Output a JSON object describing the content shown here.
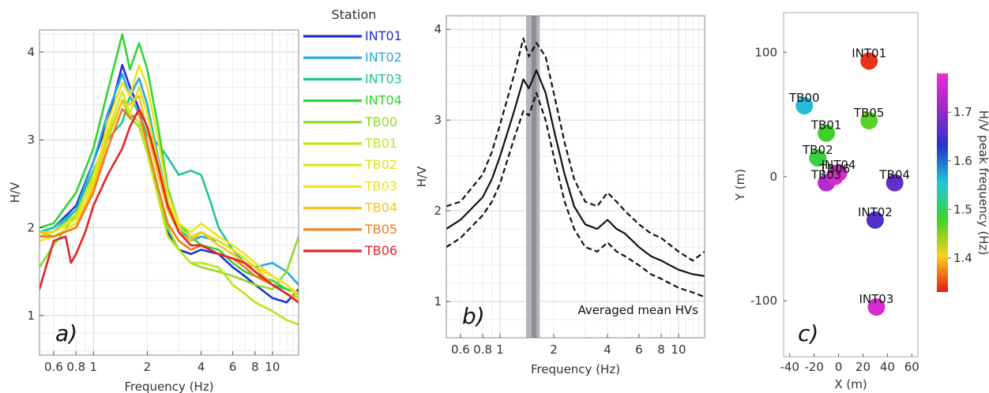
{
  "chart_data": [
    {
      "panel": "a)",
      "type": "line",
      "xlabel": "Frequency (Hz)",
      "ylabel": "H/V",
      "xscale": "log",
      "xlim": [
        0.5,
        14
      ],
      "ylim": [
        0.55,
        4.25
      ],
      "xticks": [
        0.6,
        0.8,
        1,
        2,
        4,
        6,
        8,
        10
      ],
      "xticklabels": [
        "0.6",
        "0.8",
        "1",
        "2",
        "4",
        "6",
        "8",
        "10"
      ],
      "yticks": [
        1,
        2,
        3,
        4
      ],
      "grid": true,
      "legend_title": "Station",
      "legend_position": "right",
      "series": [
        {
          "name": "INT01",
          "color": "#1f2fd8",
          "x": [
            0.5,
            0.6,
            0.8,
            1.0,
            1.2,
            1.45,
            1.6,
            1.8,
            2.0,
            2.3,
            2.6,
            3.0,
            3.5,
            4.0,
            5.0,
            6.0,
            7.0,
            8.0,
            10.0,
            12.0,
            14.0
          ],
          "y": [
            1.95,
            2.0,
            2.25,
            2.75,
            3.2,
            3.85,
            3.6,
            3.35,
            2.95,
            2.35,
            1.95,
            1.75,
            1.7,
            1.75,
            1.7,
            1.55,
            1.45,
            1.35,
            1.2,
            1.15,
            1.3
          ]
        },
        {
          "name": "INT02",
          "color": "#27a8e0",
          "x": [
            0.5,
            0.6,
            0.8,
            1.0,
            1.2,
            1.45,
            1.6,
            1.8,
            2.0,
            2.3,
            2.6,
            3.0,
            3.5,
            4.0,
            5.0,
            6.0,
            7.0,
            8.0,
            10.0,
            12.0,
            14.0
          ],
          "y": [
            1.9,
            1.95,
            2.2,
            2.75,
            3.3,
            3.75,
            3.5,
            3.7,
            3.4,
            2.8,
            2.3,
            2.0,
            1.85,
            1.9,
            1.85,
            1.75,
            1.6,
            1.55,
            1.6,
            1.5,
            1.35
          ]
        },
        {
          "name": "INT03",
          "color": "#1ec49a",
          "x": [
            0.5,
            0.6,
            0.8,
            1.0,
            1.2,
            1.45,
            1.6,
            1.8,
            2.0,
            2.3,
            2.6,
            3.0,
            3.5,
            4.0,
            4.5,
            5.0,
            6.0,
            7.0,
            8.0,
            10.0,
            12.0,
            14.0
          ],
          "y": [
            1.95,
            2.0,
            2.2,
            2.65,
            3.0,
            3.2,
            3.5,
            3.3,
            3.05,
            2.95,
            2.8,
            2.6,
            2.65,
            2.6,
            2.3,
            2.0,
            1.75,
            1.6,
            1.5,
            1.35,
            1.3,
            1.25
          ]
        },
        {
          "name": "INT04",
          "color": "#2fd62f",
          "x": [
            0.5,
            0.6,
            0.8,
            1.0,
            1.2,
            1.45,
            1.6,
            1.8,
            2.0,
            2.3,
            2.6,
            3.0,
            3.5,
            4.0,
            5.0,
            6.0,
            7.0,
            8.0,
            10.0,
            12.0,
            14.0
          ],
          "y": [
            2.0,
            2.05,
            2.4,
            2.9,
            3.55,
            4.2,
            3.8,
            4.1,
            3.8,
            3.15,
            2.45,
            2.05,
            1.9,
            1.8,
            1.75,
            1.6,
            1.5,
            1.45,
            1.4,
            1.3,
            1.25
          ]
        },
        {
          "name": "TB00",
          "color": "#8fdc22",
          "x": [
            0.5,
            0.6,
            0.8,
            1.0,
            1.2,
            1.45,
            1.6,
            1.8,
            2.0,
            2.3,
            2.6,
            3.0,
            3.5,
            4.0,
            5.0,
            6.0,
            7.0,
            8.0,
            10.0,
            12.0,
            14.0
          ],
          "y": [
            1.55,
            1.8,
            2.15,
            2.55,
            3.0,
            3.45,
            3.25,
            3.15,
            2.85,
            2.35,
            2.0,
            1.75,
            1.6,
            1.55,
            1.5,
            1.45,
            1.4,
            1.35,
            1.3,
            1.5,
            1.9
          ]
        },
        {
          "name": "TB01",
          "color": "#bde61c",
          "x": [
            0.5,
            0.6,
            0.8,
            1.0,
            1.2,
            1.45,
            1.6,
            1.8,
            2.0,
            2.3,
            2.6,
            3.0,
            3.5,
            4.0,
            5.0,
            6.0,
            7.0,
            8.0,
            10.0,
            12.0,
            14.0
          ],
          "y": [
            1.95,
            1.95,
            2.15,
            2.55,
            3.05,
            3.45,
            3.3,
            3.2,
            2.85,
            2.35,
            1.9,
            1.75,
            1.6,
            1.6,
            1.55,
            1.35,
            1.25,
            1.15,
            1.05,
            0.95,
            0.9
          ]
        },
        {
          "name": "TB02",
          "color": "#e0e51a",
          "x": [
            0.5,
            0.6,
            0.8,
            1.0,
            1.2,
            1.45,
            1.6,
            1.8,
            2.0,
            2.3,
            2.6,
            3.0,
            3.5,
            4.0,
            5.0,
            6.0,
            7.0,
            8.0,
            10.0,
            12.0,
            14.0
          ],
          "y": [
            1.9,
            1.95,
            2.1,
            2.6,
            3.1,
            3.55,
            3.3,
            3.6,
            3.3,
            2.75,
            2.3,
            2.0,
            1.9,
            1.95,
            1.85,
            1.75,
            1.65,
            1.55,
            1.45,
            1.35,
            1.2
          ]
        },
        {
          "name": "TB03",
          "color": "#f2e21c",
          "x": [
            0.5,
            0.6,
            0.8,
            1.0,
            1.2,
            1.45,
            1.6,
            1.8,
            2.0,
            2.3,
            2.6,
            3.0,
            3.5,
            4.0,
            5.0,
            6.0,
            7.0,
            8.0,
            10.0,
            12.0,
            14.0
          ],
          "y": [
            1.85,
            1.9,
            2.05,
            2.5,
            3.2,
            3.65,
            3.5,
            3.85,
            3.6,
            3.0,
            2.4,
            2.05,
            1.95,
            2.05,
            1.9,
            1.8,
            1.7,
            1.6,
            1.45,
            1.35,
            1.25
          ]
        },
        {
          "name": "TB04",
          "color": "#f7c31a",
          "x": [
            0.5,
            0.6,
            0.8,
            1.0,
            1.2,
            1.45,
            1.6,
            1.8,
            2.0,
            2.3,
            2.6,
            3.0,
            3.5,
            4.0,
            5.0,
            6.0,
            7.0,
            8.0,
            10.0,
            12.0,
            14.0
          ],
          "y": [
            1.95,
            1.9,
            2.0,
            2.45,
            3.0,
            3.45,
            3.4,
            3.5,
            3.1,
            2.6,
            2.2,
            1.95,
            1.85,
            1.95,
            1.8,
            1.7,
            1.6,
            1.55,
            1.35,
            1.25,
            1.2
          ]
        },
        {
          "name": "TB05",
          "color": "#f07c1e",
          "x": [
            0.5,
            0.6,
            0.8,
            1.0,
            1.2,
            1.45,
            1.6,
            1.8,
            2.0,
            2.3,
            2.6,
            3.0,
            3.5,
            4.0,
            5.0,
            6.0,
            7.0,
            8.0,
            10.0,
            12.0,
            14.0
          ],
          "y": [
            1.9,
            1.9,
            2.0,
            2.4,
            2.9,
            3.35,
            3.25,
            3.3,
            2.95,
            2.45,
            2.05,
            1.85,
            1.75,
            1.8,
            1.7,
            1.65,
            1.55,
            1.45,
            1.35,
            1.25,
            1.15
          ]
        },
        {
          "name": "TB06",
          "color": "#e6222a",
          "x": [
            0.5,
            0.6,
            0.7,
            0.75,
            0.8,
            0.9,
            1.0,
            1.2,
            1.45,
            1.6,
            1.8,
            2.0,
            2.3,
            2.6,
            3.0,
            3.5,
            4.0,
            5.0,
            6.0,
            7.0,
            8.0,
            10.0,
            12.0,
            14.0
          ],
          "y": [
            1.3,
            1.85,
            1.9,
            1.6,
            1.7,
            1.95,
            2.25,
            2.6,
            2.9,
            3.15,
            3.35,
            3.15,
            2.7,
            2.25,
            1.95,
            1.8,
            1.8,
            1.7,
            1.65,
            1.6,
            1.5,
            1.35,
            1.25,
            1.15
          ]
        }
      ]
    },
    {
      "panel": "b)",
      "type": "line",
      "xlabel": "Frequency (Hz)",
      "ylabel": "H/V",
      "xscale": "log",
      "xlim": [
        0.5,
        14
      ],
      "ylim": [
        0.6,
        4.15
      ],
      "xticks": [
        0.6,
        0.8,
        1,
        2,
        4,
        6,
        8,
        10
      ],
      "xticklabels": [
        "0.6",
        "0.8",
        "1",
        "2",
        "4",
        "6",
        "8",
        "10"
      ],
      "yticks": [
        1,
        2,
        3,
        4
      ],
      "grid": true,
      "annotation": "Averaged mean HVs",
      "peak_bands": [
        {
          "from": 1.4,
          "to": 1.67,
          "color": "#b4b4b8"
        },
        {
          "from": 1.5,
          "to": 1.6,
          "color": "#8d8d93"
        }
      ],
      "series": [
        {
          "name": "mean",
          "style": "solid",
          "color": "#111111",
          "x": [
            0.5,
            0.6,
            0.8,
            0.9,
            1.0,
            1.2,
            1.35,
            1.45,
            1.6,
            1.8,
            2.0,
            2.3,
            2.6,
            3.0,
            3.5,
            4.0,
            4.5,
            5.0,
            6.0,
            7.0,
            8.0,
            10.0,
            12.0,
            14.0
          ],
          "y": [
            1.8,
            1.9,
            2.15,
            2.35,
            2.6,
            3.1,
            3.45,
            3.35,
            3.55,
            3.3,
            2.9,
            2.4,
            2.05,
            1.85,
            1.8,
            1.9,
            1.8,
            1.75,
            1.6,
            1.5,
            1.45,
            1.35,
            1.3,
            1.28
          ]
        },
        {
          "name": "mean+std",
          "style": "dashed",
          "color": "#111111",
          "x": [
            0.5,
            0.6,
            0.8,
            0.9,
            1.0,
            1.2,
            1.35,
            1.45,
            1.6,
            1.8,
            2.0,
            2.3,
            2.6,
            3.0,
            3.5,
            4.0,
            4.5,
            5.0,
            6.0,
            7.0,
            8.0,
            10.0,
            12.0,
            14.0
          ],
          "y": [
            2.05,
            2.1,
            2.4,
            2.65,
            2.95,
            3.5,
            3.9,
            3.7,
            3.85,
            3.7,
            3.3,
            2.75,
            2.35,
            2.1,
            2.05,
            2.2,
            2.1,
            2.0,
            1.85,
            1.75,
            1.7,
            1.55,
            1.45,
            1.55
          ]
        },
        {
          "name": "mean-std",
          "style": "dashed",
          "color": "#111111",
          "x": [
            0.5,
            0.6,
            0.8,
            0.9,
            1.0,
            1.2,
            1.35,
            1.45,
            1.6,
            1.8,
            2.0,
            2.3,
            2.6,
            3.0,
            3.5,
            4.0,
            4.5,
            5.0,
            6.0,
            7.0,
            8.0,
            10.0,
            12.0,
            14.0
          ],
          "y": [
            1.6,
            1.7,
            1.95,
            2.1,
            2.3,
            2.8,
            3.1,
            3.05,
            3.3,
            3.0,
            2.6,
            2.1,
            1.8,
            1.6,
            1.55,
            1.65,
            1.55,
            1.5,
            1.4,
            1.3,
            1.25,
            1.15,
            1.1,
            1.05
          ]
        }
      ]
    },
    {
      "panel": "c)",
      "type": "scatter",
      "xlabel": "X (m)",
      "ylabel": "Y (m)",
      "xlim": [
        -45,
        65
      ],
      "ylim": [
        -145,
        132
      ],
      "xticks": [
        -40,
        -20,
        0,
        20,
        40,
        60
      ],
      "yticks": [
        -100,
        0,
        100
      ],
      "grid": false,
      "colorbar": {
        "label": "H/V peak frequency (Hz)",
        "range": [
          1.33,
          1.78
        ],
        "ticks": [
          1.4,
          1.5,
          1.6,
          1.7
        ],
        "ticklabels": [
          "1.4",
          "1.5",
          "1.6",
          "1.7"
        ],
        "colors": [
          "#e41a1c",
          "#f7d21a",
          "#3ed12a",
          "#22c6d8",
          "#2236c8",
          "#9d28c8",
          "#e82ed0"
        ]
      },
      "points": [
        {
          "label": "INT01",
          "x": 25,
          "y": 93,
          "value": 1.34
        },
        {
          "label": "TB00",
          "x": -28,
          "y": 57,
          "value": 1.56
        },
        {
          "label": "TB05",
          "x": 25,
          "y": 45,
          "value": 1.47
        },
        {
          "label": "TB01",
          "x": -10,
          "y": 35,
          "value": 1.48
        },
        {
          "label": "TB02",
          "x": -17,
          "y": 15,
          "value": 1.49
        },
        {
          "label": "TB04",
          "x": 46,
          "y": -5,
          "value": 1.67
        },
        {
          "label": "TB03",
          "x": -10,
          "y": -5,
          "value": 1.73
        },
        {
          "label": "TB06",
          "x": -3,
          "y": 0,
          "value": 1.76
        },
        {
          "label": "INT04",
          "x": 0,
          "y": 3,
          "value": 1.76
        },
        {
          "label": "INT02",
          "x": 30,
          "y": -35,
          "value": 1.66
        },
        {
          "label": "INT03",
          "x": 31,
          "y": -105,
          "value": 1.76
        }
      ]
    }
  ]
}
